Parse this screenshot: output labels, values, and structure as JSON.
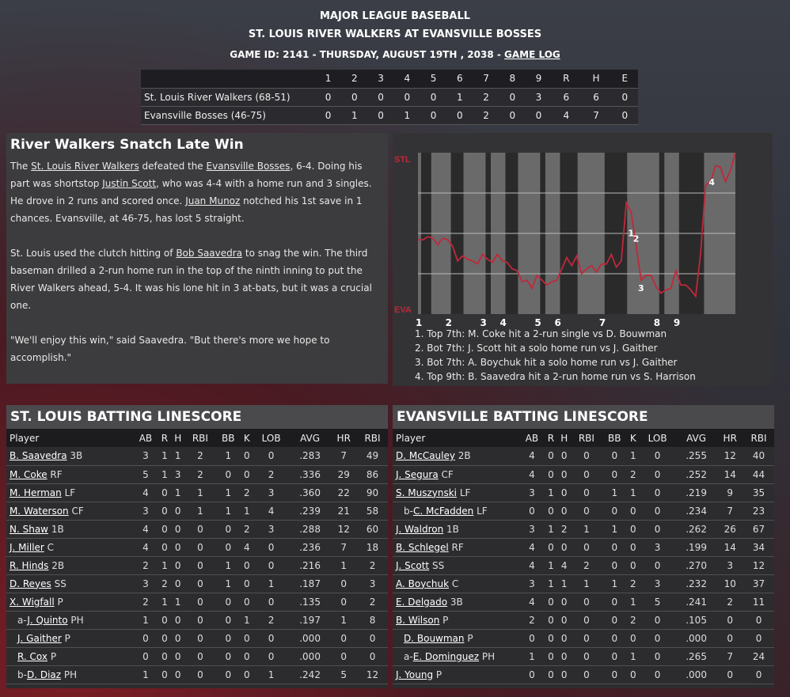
{
  "header": {
    "league": "MAJOR LEAGUE BASEBALL",
    "matchup": "ST. LOUIS RIVER WALKERS AT EVANSVILLE BOSSES",
    "game_info": "GAME ID: 2141 - THURSDAY, AUGUST 19TH , 2038 - ",
    "game_log_link": "GAME LOG"
  },
  "linescore": {
    "columns": [
      "1",
      "2",
      "3",
      "4",
      "5",
      "6",
      "7",
      "8",
      "9",
      "R",
      "H",
      "E"
    ],
    "rows": [
      {
        "team": "St. Louis River Walkers (68-51)",
        "values": [
          "0",
          "0",
          "0",
          "0",
          "0",
          "1",
          "2",
          "0",
          "3",
          "6",
          "6",
          "0"
        ]
      },
      {
        "team": "Evansville Bosses (46-75)",
        "values": [
          "0",
          "1",
          "0",
          "1",
          "0",
          "0",
          "2",
          "0",
          "0",
          "4",
          "7",
          "0"
        ]
      }
    ]
  },
  "story": {
    "headline": "River Walkers Snatch Late Win",
    "p1": [
      {
        "t": "The "
      },
      {
        "t": "St. Louis River Walkers",
        "link": true
      },
      {
        "t": " defeated the "
      },
      {
        "t": "Evansville Bosses",
        "link": true
      },
      {
        "t": ", 6-4. Doing his part was shortstop "
      },
      {
        "t": "Justin Scott",
        "link": true
      },
      {
        "t": ", who was 4-4 with a home run and 3 singles. He drove in 2 runs and scored once. "
      },
      {
        "t": "Juan Munoz",
        "link": true
      },
      {
        "t": " notched his 1st save in 1 chances. Evansville, at 46-75, has lost 5 straight."
      }
    ],
    "p2": [
      {
        "t": "St. Louis used the clutch hitting of "
      },
      {
        "t": "Bob Saavedra",
        "link": true
      },
      {
        "t": " to snag the win. The third baseman drilled a 2-run home run in the top of the ninth inning to put the River Walkers ahead, 5-4. It was his lone hit in 3 at-bats, but it was a crucial one."
      }
    ],
    "p3": [
      {
        "t": "\"We'll enjoy this win,\" said Saavedra. \"But there's more we hope to accomplish.\""
      }
    ]
  },
  "chart_data": {
    "type": "line",
    "top_label": "STL",
    "bottom_label": "EVA",
    "ylim": [
      0,
      100
    ],
    "grid": true,
    "line_color": "#c0283a",
    "stl_win_probability": [
      46,
      46,
      48,
      47,
      43,
      47,
      46,
      42,
      33,
      36,
      34,
      33,
      31,
      37,
      34,
      32,
      37,
      33,
      32,
      28,
      27,
      20,
      21,
      16,
      24,
      21,
      18,
      20,
      21,
      28,
      35,
      30,
      36,
      25,
      28,
      30,
      26,
      31,
      31,
      37,
      29,
      33,
      69,
      63,
      42,
      21,
      24,
      24,
      17,
      13,
      15,
      16,
      27,
      18,
      18,
      15,
      11,
      38,
      80,
      82,
      92,
      91,
      82,
      89,
      100
    ],
    "inning_labels": [
      {
        "label": "1",
        "event": 0
      },
      {
        "label": "2",
        "event": 6
      },
      {
        "label": "3",
        "event": 13
      },
      {
        "label": "4",
        "event": 17
      },
      {
        "label": "5",
        "event": 24
      },
      {
        "label": "6",
        "event": 28
      },
      {
        "label": "7",
        "event": 37
      },
      {
        "label": "8",
        "event": 48
      },
      {
        "label": "9",
        "event": 52
      }
    ],
    "markers": [
      {
        "label": "1",
        "event": 43
      },
      {
        "label": "2",
        "event": 44
      },
      {
        "label": "3",
        "event": 45
      },
      {
        "label": "4",
        "event": 58
      }
    ],
    "notes": [
      "1. Top 7th: M. Coke hit a 2-run single vs D. Bouwman",
      "2. Bot 7th: J. Scott hit a solo home run vs J. Gaither",
      "3. Bot 7th: A. Boychuk hit a solo home run vs J. Gaither",
      "4. Top 9th: B. Saavedra hit a 2-run home run vs S. Harrison"
    ]
  },
  "batting": [
    {
      "title": "ST. LOUIS BATTING LINESCORE",
      "columns": [
        "Player",
        "AB",
        "R",
        "H",
        "RBI",
        "BB",
        "K",
        "LOB",
        "AVG",
        "HR",
        "RBI"
      ],
      "rows": [
        {
          "prefix": "",
          "name": "B. Saavedra",
          "pos": "3B",
          "stats": [
            "3",
            "1",
            "1",
            "2",
            "1",
            "0",
            "0",
            ".283",
            "7",
            "49"
          ]
        },
        {
          "prefix": "",
          "name": "M. Coke",
          "pos": "RF",
          "stats": [
            "5",
            "1",
            "3",
            "2",
            "0",
            "0",
            "2",
            ".336",
            "29",
            "86"
          ]
        },
        {
          "prefix": "",
          "name": "M. Herman",
          "pos": "LF",
          "stats": [
            "4",
            "0",
            "1",
            "1",
            "1",
            "2",
            "3",
            ".360",
            "22",
            "90"
          ]
        },
        {
          "prefix": "",
          "name": "M. Waterson",
          "pos": "CF",
          "stats": [
            "3",
            "0",
            "0",
            "1",
            "1",
            "1",
            "4",
            ".239",
            "21",
            "58"
          ]
        },
        {
          "prefix": "",
          "name": "N. Shaw",
          "pos": "1B",
          "stats": [
            "4",
            "0",
            "0",
            "0",
            "0",
            "2",
            "3",
            ".288",
            "12",
            "60"
          ]
        },
        {
          "prefix": "",
          "name": "J. Miller",
          "pos": "C",
          "stats": [
            "4",
            "0",
            "0",
            "0",
            "0",
            "4",
            "0",
            ".236",
            "7",
            "18"
          ]
        },
        {
          "prefix": "",
          "name": "R. Hinds",
          "pos": "2B",
          "stats": [
            "2",
            "1",
            "0",
            "0",
            "1",
            "0",
            "0",
            ".216",
            "1",
            "2"
          ]
        },
        {
          "prefix": "",
          "name": "D. Reyes",
          "pos": "SS",
          "stats": [
            "3",
            "2",
            "0",
            "0",
            "1",
            "0",
            "1",
            ".187",
            "0",
            "3"
          ]
        },
        {
          "prefix": "",
          "name": "X. Wigfall",
          "pos": "P",
          "stats": [
            "2",
            "1",
            "1",
            "0",
            "0",
            "0",
            "0",
            ".135",
            "0",
            "2"
          ]
        },
        {
          "prefix": "a-",
          "name": "J. Quinto",
          "pos": "PH",
          "sub": true,
          "stats": [
            "1",
            "0",
            "0",
            "0",
            "0",
            "1",
            "2",
            ".197",
            "1",
            "8"
          ]
        },
        {
          "prefix": "",
          "name": "J. Gaither",
          "pos": "P",
          "sub": true,
          "stats": [
            "0",
            "0",
            "0",
            "0",
            "0",
            "0",
            "0",
            ".000",
            "0",
            "0"
          ]
        },
        {
          "prefix": "",
          "name": "R. Cox",
          "pos": "P",
          "sub": true,
          "stats": [
            "0",
            "0",
            "0",
            "0",
            "0",
            "0",
            "0",
            ".000",
            "0",
            "0"
          ]
        },
        {
          "prefix": "b-",
          "name": "D. Diaz",
          "pos": "PH",
          "sub": true,
          "stats": [
            "1",
            "0",
            "0",
            "0",
            "0",
            "0",
            "1",
            ".242",
            "5",
            "12"
          ]
        }
      ]
    },
    {
      "title": "EVANSVILLE BATTING LINESCORE",
      "columns": [
        "Player",
        "AB",
        "R",
        "H",
        "RBI",
        "BB",
        "K",
        "LOB",
        "AVG",
        "HR",
        "RBI"
      ],
      "rows": [
        {
          "prefix": "",
          "name": "D. McCauley",
          "pos": "2B",
          "stats": [
            "4",
            "0",
            "0",
            "0",
            "0",
            "1",
            "0",
            ".255",
            "12",
            "40"
          ]
        },
        {
          "prefix": "",
          "name": "J. Segura",
          "pos": "CF",
          "stats": [
            "4",
            "0",
            "0",
            "0",
            "0",
            "2",
            "0",
            ".252",
            "14",
            "44"
          ]
        },
        {
          "prefix": "",
          "name": "S. Muszynski",
          "pos": "LF",
          "stats": [
            "3",
            "1",
            "0",
            "0",
            "1",
            "1",
            "0",
            ".219",
            "9",
            "35"
          ]
        },
        {
          "prefix": "b-",
          "name": "C. McFadden",
          "pos": "LF",
          "sub": true,
          "stats": [
            "0",
            "0",
            "0",
            "0",
            "0",
            "0",
            "0",
            ".234",
            "7",
            "23"
          ]
        },
        {
          "prefix": "",
          "name": "J. Waldron",
          "pos": "1B",
          "stats": [
            "3",
            "1",
            "2",
            "1",
            "1",
            "0",
            "0",
            ".262",
            "26",
            "67"
          ]
        },
        {
          "prefix": "",
          "name": "B. Schlegel",
          "pos": "RF",
          "stats": [
            "4",
            "0",
            "0",
            "0",
            "0",
            "0",
            "3",
            ".199",
            "14",
            "34"
          ]
        },
        {
          "prefix": "",
          "name": "J. Scott",
          "pos": "SS",
          "stats": [
            "4",
            "1",
            "4",
            "2",
            "0",
            "0",
            "0",
            ".270",
            "3",
            "12"
          ]
        },
        {
          "prefix": "",
          "name": "A. Boychuk",
          "pos": "C",
          "stats": [
            "3",
            "1",
            "1",
            "1",
            "1",
            "2",
            "3",
            ".232",
            "10",
            "37"
          ]
        },
        {
          "prefix": "",
          "name": "E. Delgado",
          "pos": "3B",
          "stats": [
            "4",
            "0",
            "0",
            "0",
            "0",
            "1",
            "5",
            ".241",
            "2",
            "11"
          ]
        },
        {
          "prefix": "",
          "name": "B. Wilson",
          "pos": "P",
          "stats": [
            "2",
            "0",
            "0",
            "0",
            "0",
            "2",
            "0",
            ".105",
            "0",
            "0"
          ]
        },
        {
          "prefix": "",
          "name": "D. Bouwman",
          "pos": "P",
          "sub": true,
          "stats": [
            "0",
            "0",
            "0",
            "0",
            "0",
            "0",
            "0",
            ".000",
            "0",
            "0"
          ]
        },
        {
          "prefix": "a-",
          "name": "E. Dominguez",
          "pos": "PH",
          "sub": true,
          "stats": [
            "1",
            "0",
            "0",
            "0",
            "0",
            "1",
            "0",
            ".265",
            "7",
            "24"
          ]
        },
        {
          "prefix": "",
          "name": "J. Young",
          "pos": "P",
          "stats": [
            "0",
            "0",
            "0",
            "0",
            "0",
            "0",
            "0",
            ".000",
            "0",
            "0"
          ]
        }
      ]
    }
  ]
}
